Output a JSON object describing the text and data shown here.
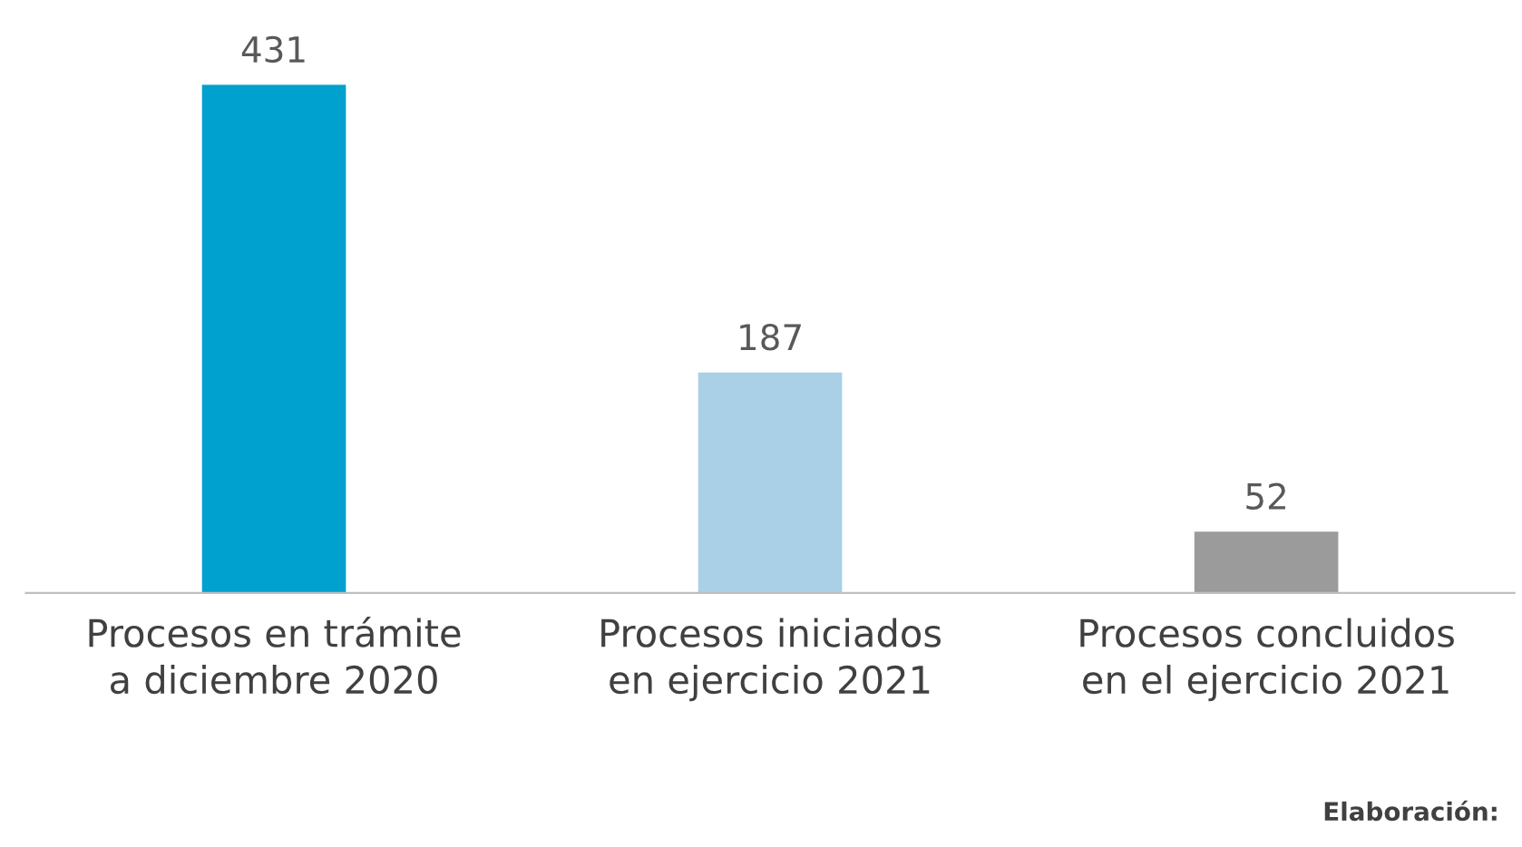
{
  "chart_data": {
    "type": "bar",
    "categories": [
      "Procesos en trámite\na diciembre 2020",
      "Procesos iniciados\nen ejercicio 2021",
      "Procesos concluidos\nen el ejercicio 2021"
    ],
    "values": [
      431,
      187,
      52
    ],
    "colors": [
      "#00a0cf",
      "#a9d0e7",
      "#9b9b9b"
    ],
    "data_labels": true,
    "grid": false,
    "legend": false,
    "annotations": [
      "Elaboración:"
    ]
  }
}
